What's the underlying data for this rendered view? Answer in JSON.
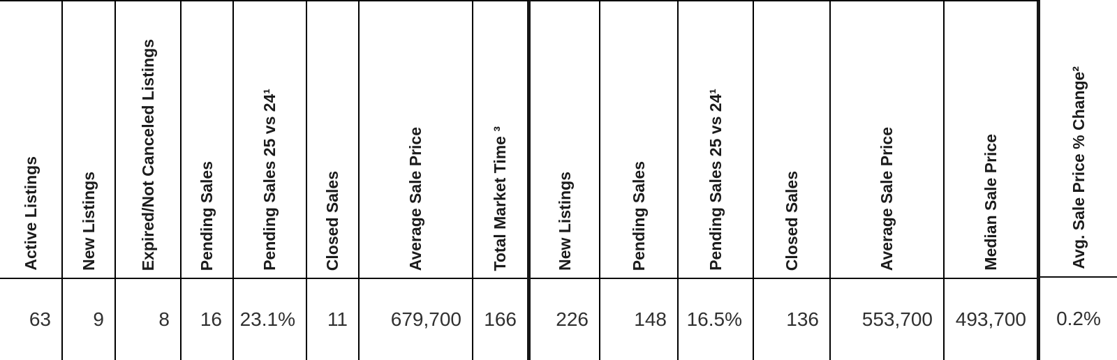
{
  "table": {
    "description": "Market statistics table with rotated column headers and one data row",
    "columns": [
      {
        "label": "Active Listings",
        "value": "63"
      },
      {
        "label": "New Listings",
        "value": "9"
      },
      {
        "label": "Expired/Not Canceled Listings",
        "value": "8"
      },
      {
        "label": "Pending Sales",
        "value": "16"
      },
      {
        "label": "Pending Sales 25 vs 24¹",
        "value": "23.1%"
      },
      {
        "label": "Closed Sales",
        "value": "11"
      },
      {
        "label": "Average Sale Price",
        "value": "679,700"
      },
      {
        "label": "Total Market Time ³",
        "value": "166"
      },
      {
        "label": "New Listings",
        "value": "226"
      },
      {
        "label": "Pending Sales",
        "value": "148"
      },
      {
        "label": "Pending Sales 25 vs 24¹",
        "value": "16.5%"
      },
      {
        "label": "Closed Sales",
        "value": "136"
      },
      {
        "label": "Average Sale Price",
        "value": "553,700"
      },
      {
        "label": "Median Sale Price",
        "value": "493,700"
      },
      {
        "label": "Avg. Sale Price % Change²",
        "value": "0.2%"
      }
    ]
  },
  "colors": {
    "grid_line": "#000000",
    "thick_divider": "#161616",
    "header_text": "#1b1b1b",
    "value_text": "#303030",
    "background": "#ffffff"
  }
}
